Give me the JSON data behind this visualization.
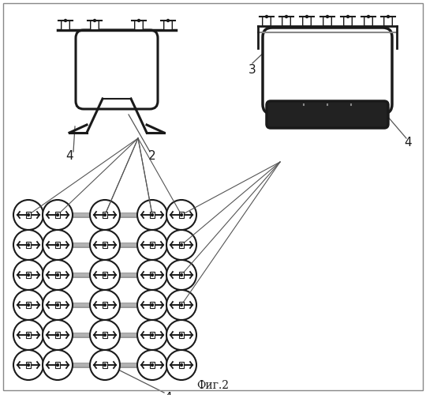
{
  "title": "Фиг.2",
  "bg_color": "#ffffff",
  "line_color": "#1a1a1a",
  "bar_color": "#aaaaaa",
  "ann_color": "#555555",
  "label_color": "#111111"
}
